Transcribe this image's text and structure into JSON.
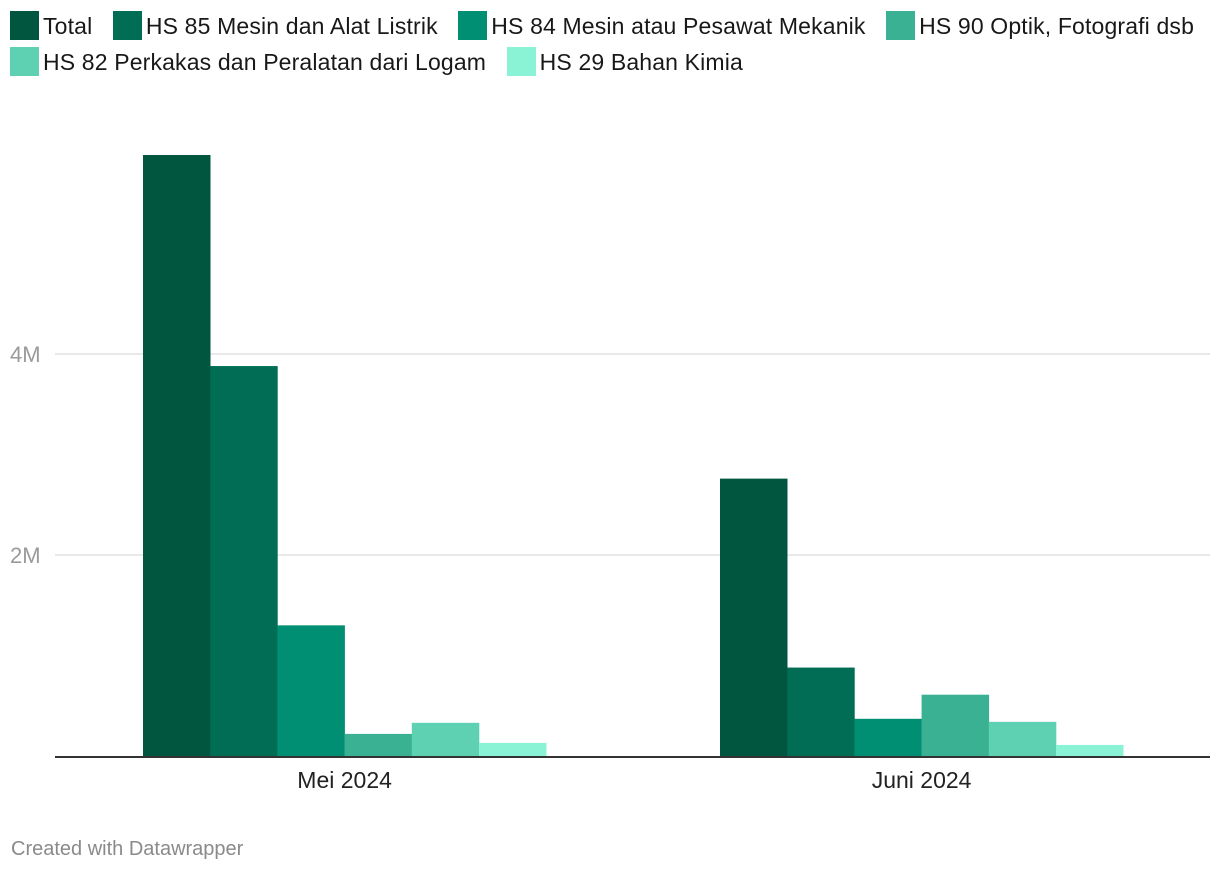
{
  "chart_data": {
    "type": "bar",
    "title": "",
    "xlabel": "",
    "ylabel": "",
    "categories": [
      "Mei 2024",
      "Juni 2024"
    ],
    "series": [
      {
        "name": "Total",
        "color": "#00563f",
        "values": [
          5.98,
          2.76
        ]
      },
      {
        "name": "HS 85 Mesin dan Alat Listrik",
        "color": "#006d54",
        "values": [
          3.88,
          0.88
        ]
      },
      {
        "name": "HS 84 Mesin atau Pesawat Mekanik",
        "color": "#008f72",
        "values": [
          1.3,
          0.37
        ]
      },
      {
        "name": "HS 90 Optik, Fotografi dsb",
        "color": "#3ab193",
        "values": [
          0.22,
          0.61
        ]
      },
      {
        "name": "HS 82 Perkakas dan Peralatan dari Logam",
        "color": "#5fd1b3",
        "values": [
          0.33,
          0.34
        ]
      },
      {
        "name": "HS 29 Bahan Kimia",
        "color": "#8af3d5",
        "values": [
          0.13,
          0.11
        ]
      }
    ],
    "y_ticks": [
      {
        "value": 2,
        "label": "2M"
      },
      {
        "value": 4,
        "label": "4M"
      }
    ],
    "ylim": [
      0,
      6
    ],
    "grid": true,
    "legend_position": "top"
  },
  "footer": {
    "credit": "Created with Datawrapper"
  }
}
